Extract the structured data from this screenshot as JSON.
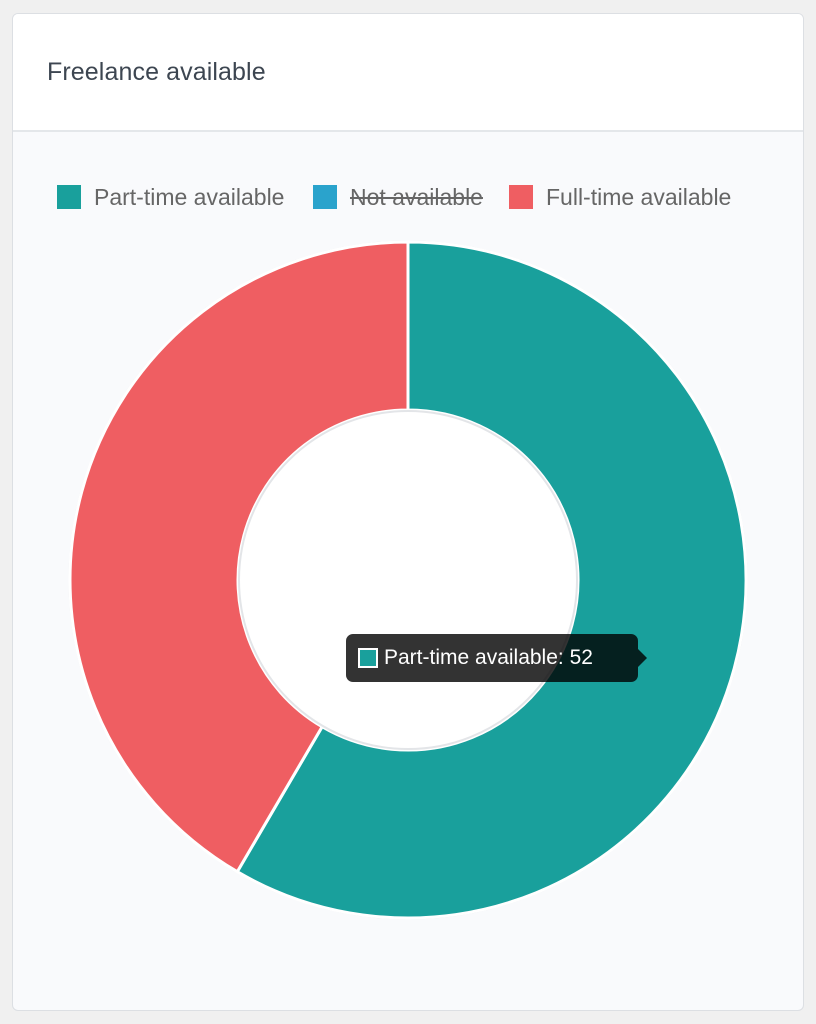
{
  "card": {
    "title": "Freelance available"
  },
  "chart_data": {
    "type": "pie",
    "variant": "doughnut",
    "legend_position": "top",
    "slices": [
      {
        "label": "Part-time available",
        "value": 52,
        "color": "#19a09c",
        "visible": true
      },
      {
        "label": "Not available",
        "value": null,
        "color": "#2aa3cc",
        "visible": false
      },
      {
        "label": "Full-time available",
        "value": 37,
        "color": "#ef5e62",
        "visible": true
      }
    ]
  },
  "tooltip": {
    "label": "Part-time available: 52",
    "color": "#19a09c"
  }
}
